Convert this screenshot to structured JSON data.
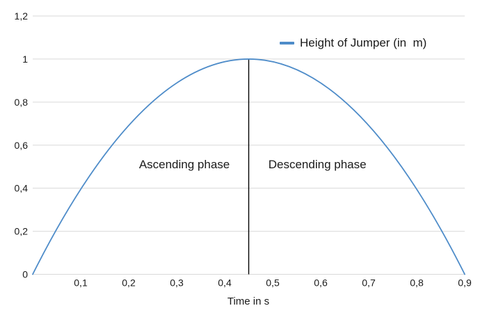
{
  "colors": {
    "curve": "#4e8cc9",
    "grid": "#d9d9d9",
    "axis": "#d9d9d9",
    "divider": "#000000",
    "text": "#1a1a1a",
    "background": "#ffffff"
  },
  "legend": {
    "label": "Height of Jumper (in  m)",
    "swatch_color": "#4e8cc9"
  },
  "chart_data": {
    "type": "line",
    "title": "",
    "xlabel": "Time in s",
    "ylabel": "",
    "xlim": [
      0,
      0.9
    ],
    "ylim": [
      0,
      1.2
    ],
    "grid": "horizontal",
    "legend_position": "top-right-inside",
    "x_ticks": [
      0.1,
      0.2,
      0.3,
      0.4,
      0.5,
      0.6,
      0.7,
      0.8,
      0.9
    ],
    "x_tick_labels": [
      "0,1",
      "0,2",
      "0,3",
      "0,4",
      "0,5",
      "0,6",
      "0,7",
      "0,8",
      "0,9"
    ],
    "y_ticks": [
      0,
      0.2,
      0.4,
      0.6,
      0.8,
      1,
      1.2
    ],
    "y_tick_labels": [
      "0",
      "0,2",
      "0,4",
      "0,6",
      "0,8",
      "1",
      "1,2"
    ],
    "series": [
      {
        "name": "Height of Jumper (in  m)",
        "color": "#4e8cc9",
        "curve": {
          "shape": "parabola",
          "roots": [
            0,
            0.9
          ],
          "peak": [
            0.45,
            1.0
          ]
        },
        "points": [
          [
            0,
            0
          ],
          [
            0.05,
            0.21
          ],
          [
            0.1,
            0.395
          ],
          [
            0.15,
            0.556
          ],
          [
            0.2,
            0.691
          ],
          [
            0.25,
            0.802
          ],
          [
            0.3,
            0.889
          ],
          [
            0.35,
            0.951
          ],
          [
            0.4,
            0.988
          ],
          [
            0.45,
            1.0
          ],
          [
            0.5,
            0.988
          ],
          [
            0.55,
            0.951
          ],
          [
            0.6,
            0.889
          ],
          [
            0.65,
            0.802
          ],
          [
            0.7,
            0.691
          ],
          [
            0.75,
            0.556
          ],
          [
            0.8,
            0.395
          ],
          [
            0.85,
            0.21
          ],
          [
            0.9,
            0
          ]
        ]
      }
    ],
    "annotations": [
      {
        "type": "text",
        "text": "Ascending phase",
        "x": 0.316,
        "y": 0.51
      },
      {
        "type": "text",
        "text": "Descending phase",
        "x": 0.593,
        "y": 0.51
      }
    ],
    "divider_line": {
      "x": 0.45,
      "y_from": 0,
      "y_to": 1.0
    }
  }
}
